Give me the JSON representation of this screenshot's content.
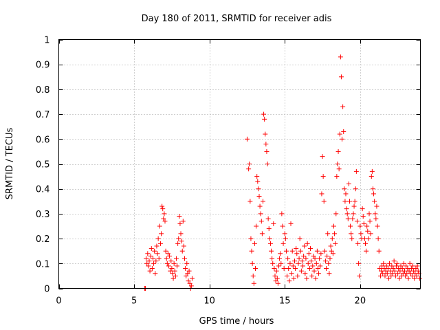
{
  "chart_data": {
    "type": "scatter",
    "title": "Day 180 of 2011, SRMTID for receiver adis",
    "xlabel": "GPS time / hours",
    "ylabel": "SRMTID / TECUs",
    "xlim": [
      0,
      24
    ],
    "ylim": [
      0,
      1
    ],
    "xticks": [
      0,
      5,
      10,
      15,
      20
    ],
    "yticks": [
      0,
      0.1,
      0.2,
      0.3,
      0.4,
      0.5,
      0.6,
      0.7,
      0.8,
      0.9,
      1
    ],
    "ytick_labels": [
      "0",
      "0.1",
      "0.2",
      "0.3",
      "0.4",
      "0.5",
      "0.6",
      "0.7",
      "0.8",
      "0.9",
      "1"
    ],
    "grid": true,
    "marker": "+",
    "color": "#ff0000",
    "series": [
      {
        "points": [
          [
            5.7,
            0.0
          ],
          [
            5.75,
            0.0
          ],
          [
            5.8,
            0.12
          ],
          [
            5.85,
            0.1
          ],
          [
            5.9,
            0.14
          ],
          [
            5.95,
            0.09
          ],
          [
            6.0,
            0.11
          ],
          [
            6.05,
            0.07
          ],
          [
            6.1,
            0.13
          ],
          [
            6.15,
            0.16
          ],
          [
            6.2,
            0.08
          ],
          [
            6.25,
            0.12
          ],
          [
            6.3,
            0.1
          ],
          [
            6.35,
            0.15
          ],
          [
            6.4,
            0.06
          ],
          [
            6.45,
            0.11
          ],
          [
            6.5,
            0.17
          ],
          [
            6.55,
            0.14
          ],
          [
            6.6,
            0.2
          ],
          [
            6.65,
            0.12
          ],
          [
            6.7,
            0.25
          ],
          [
            6.75,
            0.18
          ],
          [
            6.8,
            0.22
          ],
          [
            6.85,
            0.33
          ],
          [
            6.9,
            0.32
          ],
          [
            6.95,
            0.28
          ],
          [
            7.0,
            0.3
          ],
          [
            7.05,
            0.27
          ],
          [
            7.1,
            0.15
          ],
          [
            7.15,
            0.12
          ],
          [
            7.2,
            0.1
          ],
          [
            7.25,
            0.14
          ],
          [
            7.3,
            0.09
          ],
          [
            7.35,
            0.13
          ],
          [
            7.4,
            0.07
          ],
          [
            7.45,
            0.11
          ],
          [
            7.5,
            0.08
          ],
          [
            7.55,
            0.06
          ],
          [
            7.6,
            0.04
          ],
          [
            7.65,
            0.1
          ],
          [
            7.7,
            0.07
          ],
          [
            7.75,
            0.05
          ],
          [
            7.8,
            0.12
          ],
          [
            7.85,
            0.09
          ],
          [
            7.9,
            0.18
          ],
          [
            7.95,
            0.2
          ],
          [
            8.0,
            0.29
          ],
          [
            8.05,
            0.26
          ],
          [
            8.1,
            0.22
          ],
          [
            8.15,
            0.19
          ],
          [
            8.2,
            0.15
          ],
          [
            8.25,
            0.27
          ],
          [
            8.3,
            0.17
          ],
          [
            8.35,
            0.12
          ],
          [
            8.4,
            0.08
          ],
          [
            8.45,
            0.05
          ],
          [
            8.5,
            0.1
          ],
          [
            8.55,
            0.06
          ],
          [
            8.6,
            0.03
          ],
          [
            8.65,
            0.07
          ],
          [
            8.7,
            0.02
          ],
          [
            8.75,
            0.0
          ],
          [
            8.8,
            0.01
          ],
          [
            8.85,
            0.04
          ],
          [
            12.5,
            0.6
          ],
          [
            12.6,
            0.48
          ],
          [
            12.65,
            0.5
          ],
          [
            12.7,
            0.35
          ],
          [
            12.75,
            0.2
          ],
          [
            12.8,
            0.15
          ],
          [
            12.85,
            0.1
          ],
          [
            12.9,
            0.05
          ],
          [
            12.95,
            0.02
          ],
          [
            13.0,
            0.18
          ],
          [
            13.05,
            0.08
          ],
          [
            13.1,
            0.25
          ],
          [
            13.15,
            0.45
          ],
          [
            13.2,
            0.43
          ],
          [
            13.25,
            0.4
          ],
          [
            13.3,
            0.37
          ],
          [
            13.35,
            0.33
          ],
          [
            13.4,
            0.3
          ],
          [
            13.45,
            0.27
          ],
          [
            13.5,
            0.22
          ],
          [
            13.55,
            0.35
          ],
          [
            13.6,
            0.7
          ],
          [
            13.65,
            0.68
          ],
          [
            13.7,
            0.62
          ],
          [
            13.75,
            0.58
          ],
          [
            13.8,
            0.55
          ],
          [
            13.85,
            0.5
          ],
          [
            13.9,
            0.28
          ],
          [
            13.95,
            0.24
          ],
          [
            14.0,
            0.2
          ],
          [
            14.05,
            0.18
          ],
          [
            14.1,
            0.15
          ],
          [
            14.15,
            0.12
          ],
          [
            14.2,
            0.1
          ],
          [
            14.25,
            0.26
          ],
          [
            14.3,
            0.08
          ],
          [
            14.35,
            0.05
          ],
          [
            14.4,
            0.03
          ],
          [
            14.45,
            0.07
          ],
          [
            14.5,
            0.04
          ],
          [
            14.55,
            0.02
          ],
          [
            14.6,
            0.09
          ],
          [
            14.65,
            0.12
          ],
          [
            14.7,
            0.14
          ],
          [
            14.75,
            0.1
          ],
          [
            14.8,
            0.3
          ],
          [
            14.85,
            0.25
          ],
          [
            14.9,
            0.18
          ],
          [
            14.95,
            0.08
          ],
          [
            15.0,
            0.22
          ],
          [
            15.05,
            0.2
          ],
          [
            15.1,
            0.15
          ],
          [
            15.15,
            0.05
          ],
          [
            15.2,
            0.12
          ],
          [
            15.25,
            0.08
          ],
          [
            15.3,
            0.03
          ],
          [
            15.35,
            0.1
          ],
          [
            15.4,
            0.26
          ],
          [
            15.45,
            0.06
          ],
          [
            15.5,
            0.15
          ],
          [
            15.55,
            0.09
          ],
          [
            15.6,
            0.04
          ],
          [
            15.65,
            0.11
          ],
          [
            15.7,
            0.08
          ],
          [
            15.75,
            0.16
          ],
          [
            15.8,
            0.14
          ],
          [
            15.85,
            0.05
          ],
          [
            15.9,
            0.1
          ],
          [
            15.95,
            0.12
          ],
          [
            16.0,
            0.2
          ],
          [
            16.05,
            0.15
          ],
          [
            16.1,
            0.07
          ],
          [
            16.15,
            0.11
          ],
          [
            16.2,
            0.09
          ],
          [
            16.25,
            0.13
          ],
          [
            16.3,
            0.17
          ],
          [
            16.35,
            0.06
          ],
          [
            16.4,
            0.12
          ],
          [
            16.45,
            0.04
          ],
          [
            16.5,
            0.18
          ],
          [
            16.55,
            0.1
          ],
          [
            16.6,
            0.14
          ],
          [
            16.65,
            0.08
          ],
          [
            16.7,
            0.16
          ],
          [
            16.75,
            0.11
          ],
          [
            16.8,
            0.05
          ],
          [
            16.85,
            0.09
          ],
          [
            16.9,
            0.13
          ],
          [
            16.95,
            0.07
          ],
          [
            17.0,
            0.12
          ],
          [
            17.05,
            0.04
          ],
          [
            17.1,
            0.1
          ],
          [
            17.15,
            0.15
          ],
          [
            17.2,
            0.08
          ],
          [
            17.25,
            0.06
          ],
          [
            17.3,
            0.12
          ],
          [
            17.35,
            0.09
          ],
          [
            17.4,
            0.14
          ],
          [
            17.45,
            0.38
          ],
          [
            17.5,
            0.53
          ],
          [
            17.55,
            0.45
          ],
          [
            17.6,
            0.35
          ],
          [
            17.65,
            0.15
          ],
          [
            17.7,
            0.11
          ],
          [
            17.75,
            0.08
          ],
          [
            17.8,
            0.13
          ],
          [
            17.85,
            0.22
          ],
          [
            17.9,
            0.1
          ],
          [
            17.95,
            0.06
          ],
          [
            18.0,
            0.12
          ],
          [
            18.05,
            0.17
          ],
          [
            18.1,
            0.15
          ],
          [
            18.15,
            0.2
          ],
          [
            18.2,
            0.14
          ],
          [
            18.25,
            0.25
          ],
          [
            18.3,
            0.22
          ],
          [
            18.35,
            0.18
          ],
          [
            18.4,
            0.3
          ],
          [
            18.45,
            0.45
          ],
          [
            18.5,
            0.5
          ],
          [
            18.55,
            0.55
          ],
          [
            18.6,
            0.48
          ],
          [
            18.65,
            0.62
          ],
          [
            18.7,
            0.93
          ],
          [
            18.75,
            0.85
          ],
          [
            18.8,
            0.6
          ],
          [
            18.85,
            0.73
          ],
          [
            18.9,
            0.63
          ],
          [
            18.95,
            0.4
          ],
          [
            19.0,
            0.35
          ],
          [
            19.05,
            0.38
          ],
          [
            19.1,
            0.32
          ],
          [
            19.15,
            0.3
          ],
          [
            19.2,
            0.28
          ],
          [
            19.25,
            0.42
          ],
          [
            19.3,
            0.35
          ],
          [
            19.35,
            0.25
          ],
          [
            19.4,
            0.22
          ],
          [
            19.45,
            0.2
          ],
          [
            19.5,
            0.28
          ],
          [
            19.55,
            0.3
          ],
          [
            19.6,
            0.33
          ],
          [
            19.65,
            0.35
          ],
          [
            19.7,
            0.4
          ],
          [
            19.75,
            0.47
          ],
          [
            19.8,
            0.27
          ],
          [
            19.85,
            0.18
          ],
          [
            19.9,
            0.1
          ],
          [
            19.95,
            0.05
          ],
          [
            20.0,
            0.25
          ],
          [
            20.05,
            0.22
          ],
          [
            20.1,
            0.2
          ],
          [
            20.15,
            0.32
          ],
          [
            20.2,
            0.29
          ],
          [
            20.25,
            0.26
          ],
          [
            20.3,
            0.2
          ],
          [
            20.35,
            0.18
          ],
          [
            20.4,
            0.15
          ],
          [
            20.45,
            0.25
          ],
          [
            20.5,
            0.23
          ],
          [
            20.55,
            0.2
          ],
          [
            20.6,
            0.3
          ],
          [
            20.65,
            0.27
          ],
          [
            20.7,
            0.22
          ],
          [
            20.75,
            0.45
          ],
          [
            20.8,
            0.47
          ],
          [
            20.85,
            0.4
          ],
          [
            20.9,
            0.38
          ],
          [
            20.95,
            0.35
          ],
          [
            21.0,
            0.3
          ],
          [
            21.05,
            0.28
          ],
          [
            21.1,
            0.33
          ],
          [
            21.15,
            0.25
          ],
          [
            21.2,
            0.2
          ],
          [
            21.25,
            0.15
          ],
          [
            21.3,
            0.08
          ],
          [
            21.35,
            0.05
          ],
          [
            21.4,
            0.07
          ],
          [
            21.45,
            0.09
          ],
          [
            21.5,
            0.06
          ],
          [
            21.55,
            0.1
          ],
          [
            21.6,
            0.08
          ],
          [
            21.65,
            0.05
          ],
          [
            21.7,
            0.07
          ],
          [
            21.75,
            0.09
          ],
          [
            21.8,
            0.06
          ],
          [
            21.85,
            0.08
          ],
          [
            21.9,
            0.04
          ],
          [
            21.95,
            0.1
          ],
          [
            22.0,
            0.07
          ],
          [
            22.05,
            0.05
          ],
          [
            22.1,
            0.09
          ],
          [
            22.15,
            0.06
          ],
          [
            22.2,
            0.08
          ],
          [
            22.25,
            0.11
          ],
          [
            22.3,
            0.07
          ],
          [
            22.35,
            0.05
          ],
          [
            22.4,
            0.09
          ],
          [
            22.45,
            0.1
          ],
          [
            22.5,
            0.06
          ],
          [
            22.55,
            0.08
          ],
          [
            22.6,
            0.04
          ],
          [
            22.65,
            0.07
          ],
          [
            22.7,
            0.09
          ],
          [
            22.75,
            0.05
          ],
          [
            22.8,
            0.08
          ],
          [
            22.85,
            0.06
          ],
          [
            22.9,
            0.1
          ],
          [
            22.95,
            0.07
          ],
          [
            23.0,
            0.05
          ],
          [
            23.05,
            0.09
          ],
          [
            23.1,
            0.06
          ],
          [
            23.15,
            0.08
          ],
          [
            23.2,
            0.04
          ],
          [
            23.25,
            0.07
          ],
          [
            23.3,
            0.1
          ],
          [
            23.35,
            0.06
          ],
          [
            23.4,
            0.08
          ],
          [
            23.45,
            0.05
          ],
          [
            23.5,
            0.09
          ],
          [
            23.55,
            0.07
          ],
          [
            23.6,
            0.04
          ],
          [
            23.65,
            0.06
          ],
          [
            23.7,
            0.08
          ],
          [
            23.75,
            0.05
          ],
          [
            23.8,
            0.09
          ],
          [
            23.85,
            0.07
          ],
          [
            23.9,
            0.06
          ],
          [
            23.95,
            0.04
          ]
        ]
      }
    ]
  }
}
